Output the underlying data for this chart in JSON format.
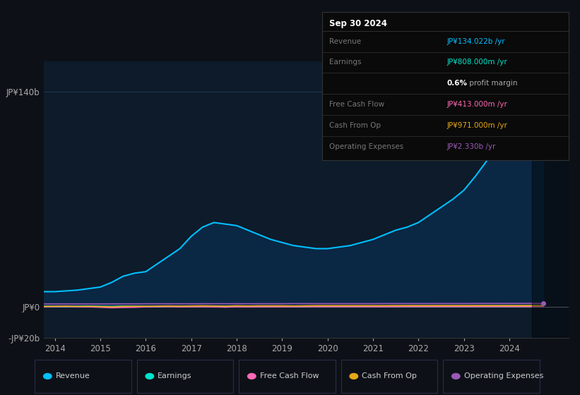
{
  "bg_color": "#0d1117",
  "plot_bg_color": "#0d1b2a",
  "grid_color": "#253a5e",
  "years": [
    2013.75,
    2014.0,
    2014.25,
    2014.5,
    2014.75,
    2015.0,
    2015.25,
    2015.5,
    2015.75,
    2016.0,
    2016.25,
    2016.5,
    2016.75,
    2017.0,
    2017.25,
    2017.5,
    2017.75,
    2018.0,
    2018.25,
    2018.5,
    2018.75,
    2019.0,
    2019.25,
    2019.5,
    2019.75,
    2020.0,
    2020.25,
    2020.5,
    2020.75,
    2021.0,
    2021.25,
    2021.5,
    2021.75,
    2022.0,
    2022.25,
    2022.5,
    2022.75,
    2023.0,
    2023.25,
    2023.5,
    2023.75,
    2024.0,
    2024.25,
    2024.5,
    2024.75
  ],
  "revenue": [
    10,
    10,
    10.5,
    11,
    12,
    13,
    16,
    20,
    22,
    23,
    28,
    33,
    38,
    46,
    52,
    55,
    54,
    53,
    50,
    47,
    44,
    42,
    40,
    39,
    38,
    38,
    39,
    40,
    42,
    44,
    47,
    50,
    52,
    55,
    60,
    65,
    70,
    76,
    85,
    95,
    108,
    118,
    126,
    132,
    134
  ],
  "earnings": [
    0.5,
    0.4,
    0.3,
    0.5,
    0.6,
    0.5,
    0.4,
    0.6,
    0.5,
    0.4,
    0.3,
    0.5,
    0.4,
    0.5,
    0.6,
    0.5,
    0.4,
    0.5,
    0.5,
    0.4,
    0.5,
    0.5,
    0.4,
    0.4,
    0.5,
    0.5,
    0.5,
    0.5,
    0.6,
    0.6,
    0.6,
    0.6,
    0.7,
    0.7,
    0.7,
    0.7,
    0.7,
    0.7,
    0.7,
    0.8,
    0.8,
    0.8,
    0.8,
    0.8,
    0.808
  ],
  "free_cash_flow": [
    0.2,
    0.3,
    0.4,
    0.2,
    0.1,
    -0.2,
    -0.5,
    -0.3,
    -0.2,
    0.1,
    0.2,
    0.3,
    0.1,
    0.2,
    0.3,
    0.1,
    -0.1,
    0.2,
    0.1,
    0.2,
    0.2,
    0.2,
    0.2,
    0.3,
    0.3,
    0.3,
    0.3,
    0.3,
    0.3,
    0.3,
    0.3,
    0.4,
    0.4,
    0.4,
    0.4,
    0.4,
    0.4,
    0.4,
    0.4,
    0.4,
    0.4,
    0.4,
    0.4,
    0.4,
    0.413
  ],
  "cash_from_op": [
    0.4,
    0.5,
    0.6,
    0.4,
    0.5,
    0.3,
    0.2,
    0.4,
    0.5,
    0.5,
    0.6,
    0.7,
    0.6,
    0.7,
    0.8,
    0.7,
    0.6,
    0.8,
    0.7,
    0.8,
    0.8,
    0.8,
    0.7,
    0.8,
    0.9,
    0.9,
    0.9,
    0.9,
    0.9,
    0.9,
    0.9,
    0.95,
    0.95,
    0.95,
    0.95,
    0.97,
    0.97,
    0.97,
    0.97,
    0.97,
    0.97,
    0.97,
    0.97,
    0.97,
    0.971
  ],
  "op_expenses": [
    2.0,
    2.0,
    2.0,
    2.0,
    2.0,
    2.0,
    2.05,
    2.05,
    2.05,
    2.1,
    2.1,
    2.1,
    2.1,
    2.1,
    2.15,
    2.15,
    2.15,
    2.15,
    2.15,
    2.15,
    2.15,
    2.15,
    2.2,
    2.2,
    2.2,
    2.2,
    2.2,
    2.2,
    2.2,
    2.2,
    2.25,
    2.25,
    2.25,
    2.25,
    2.25,
    2.27,
    2.27,
    2.27,
    2.29,
    2.3,
    2.31,
    2.32,
    2.33,
    2.33,
    2.33
  ],
  "revenue_color": "#00bfff",
  "revenue_fill_color": "#0a2744",
  "earnings_color": "#00e5cc",
  "fcf_color": "#ff69b4",
  "cfop_color": "#e6a817",
  "opex_color": "#9b59b6",
  "ylim": [
    -20,
    160
  ],
  "xlim": [
    2013.75,
    2025.3
  ],
  "yticks": [
    -20,
    0,
    140
  ],
  "ytick_labels": [
    "-JP¥20b",
    "JP¥0",
    "JP¥140b"
  ],
  "xticks": [
    2014,
    2015,
    2016,
    2017,
    2018,
    2019,
    2020,
    2021,
    2022,
    2023,
    2024
  ],
  "infobox": {
    "date": "Sep 30 2024",
    "date_color": "#ffffff",
    "bg_color": "#0a0a0a",
    "border_color": "#333333",
    "rows": [
      {
        "label": "Revenue",
        "label_color": "#777777",
        "value": "JP¥134.022b /yr",
        "value_color": "#00bfff"
      },
      {
        "label": "Earnings",
        "label_color": "#777777",
        "value": "JP¥808.000m /yr",
        "value_color": "#00e5cc"
      },
      {
        "label": "",
        "label_color": "#777777",
        "value": "0.6% profit margin",
        "value_color": "#aaaaaa",
        "bold_prefix": "0.6%"
      },
      {
        "label": "Free Cash Flow",
        "label_color": "#777777",
        "value": "JP¥413.000m /yr",
        "value_color": "#ff69b4"
      },
      {
        "label": "Cash From Op",
        "label_color": "#777777",
        "value": "JP¥971.000m /yr",
        "value_color": "#e6a817"
      },
      {
        "label": "Operating Expenses",
        "label_color": "#777777",
        "value": "JP¥2.330b /yr",
        "value_color": "#9b59b6"
      }
    ]
  },
  "legend_items": [
    {
      "label": "Revenue",
      "color": "#00bfff"
    },
    {
      "label": "Earnings",
      "color": "#00e5cc"
    },
    {
      "label": "Free Cash Flow",
      "color": "#ff69b4"
    },
    {
      "label": "Cash From Op",
      "color": "#e6a817"
    },
    {
      "label": "Operating Expenses",
      "color": "#9b59b6"
    }
  ]
}
